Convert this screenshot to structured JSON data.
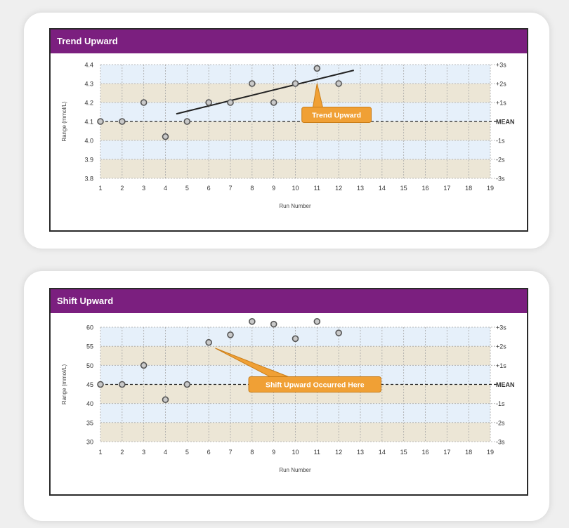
{
  "charts": [
    {
      "title": "Trend Upward",
      "chart_data": {
        "type": "scatter",
        "title": "Trend Upward",
        "xlabel": "Run Number",
        "ylabel": "Range (mmol/L)",
        "x_ticks": [
          1,
          2,
          3,
          4,
          5,
          6,
          7,
          8,
          9,
          10,
          11,
          12,
          13,
          14,
          15,
          16,
          17,
          18,
          19
        ],
        "y_ticks": [
          "3.8",
          "3.9",
          "4.0",
          "4.1",
          "4.2",
          "4.3",
          "4.4"
        ],
        "y_min": 3.8,
        "y_max": 4.4,
        "mean": 4.1,
        "sd_labels": [
          "-3s",
          "-2s",
          "-1s",
          "MEAN",
          "+1s",
          "+2s",
          "+3s"
        ],
        "points": [
          {
            "x": 1,
            "y": 4.1
          },
          {
            "x": 2,
            "y": 4.1
          },
          {
            "x": 3,
            "y": 4.2
          },
          {
            "x": 4,
            "y": 4.02
          },
          {
            "x": 5,
            "y": 4.1
          },
          {
            "x": 6,
            "y": 4.2
          },
          {
            "x": 7,
            "y": 4.2
          },
          {
            "x": 8,
            "y": 4.3
          },
          {
            "x": 9,
            "y": 4.2
          },
          {
            "x": 10,
            "y": 4.3
          },
          {
            "x": 11,
            "y": 4.38
          },
          {
            "x": 12,
            "y": 4.3
          }
        ],
        "trend_line": {
          "from": {
            "x": 4.5,
            "y": 4.14
          },
          "to": {
            "x": 12.7,
            "y": 4.37
          }
        },
        "annotation": {
          "text": "Trend Upward",
          "x": 11.9,
          "y": 4.135,
          "pointer": {
            "x": 11.0,
            "y": 4.3
          }
        }
      }
    },
    {
      "title": "Shift Upward",
      "chart_data": {
        "type": "scatter",
        "title": "Shift Upward",
        "xlabel": "Run Number",
        "ylabel": "Range (mmol/L)",
        "x_ticks": [
          1,
          2,
          3,
          4,
          5,
          6,
          7,
          8,
          9,
          10,
          11,
          12,
          13,
          14,
          15,
          16,
          17,
          18,
          19
        ],
        "y_ticks": [
          "30",
          "35",
          "40",
          "45",
          "50",
          "55",
          "60"
        ],
        "y_min": 30,
        "y_max": 60,
        "mean": 45,
        "sd_labels": [
          "-3s",
          "-2s",
          "-1s",
          "MEAN",
          "+1s",
          "+2s",
          "+3s"
        ],
        "points": [
          {
            "x": 1,
            "y": 45
          },
          {
            "x": 2,
            "y": 45
          },
          {
            "x": 3,
            "y": 50
          },
          {
            "x": 4,
            "y": 41
          },
          {
            "x": 5,
            "y": 45
          },
          {
            "x": 6,
            "y": 56
          },
          {
            "x": 7,
            "y": 58
          },
          {
            "x": 8,
            "y": 61.5
          },
          {
            "x": 9,
            "y": 60.8
          },
          {
            "x": 10,
            "y": 57
          },
          {
            "x": 11,
            "y": 61.5
          },
          {
            "x": 12,
            "y": 58.5
          }
        ],
        "annotation": {
          "text": "Shift Upward Occurred Here",
          "x": 10.9,
          "y": 45,
          "pointer": {
            "x": 6.3,
            "y": 54.5
          }
        }
      }
    }
  ]
}
